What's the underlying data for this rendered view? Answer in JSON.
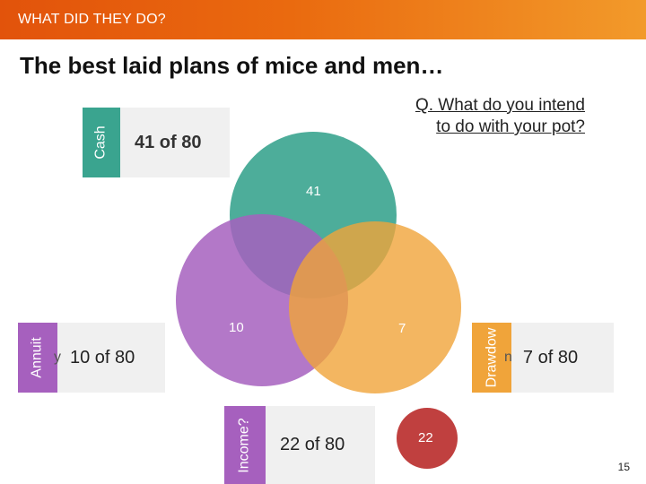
{
  "header": {
    "label": "WHAT DID THEY DO?",
    "color": "#e55a0d"
  },
  "title": "The best laid plans of mice and men…",
  "question": "Q. What do you intend to do with your pot?",
  "categories": {
    "cash": {
      "side_label": "Cash",
      "summary": "41 of 80",
      "color": "#3aa48f"
    },
    "annuity": {
      "side_label": "Annuit",
      "marker": "y",
      "summary": "10 of 80",
      "color": "#a660be"
    },
    "drawdown": {
      "side_label": "Drawdow",
      "marker": "n",
      "summary": "7 of 80",
      "color": "#f0a43a"
    },
    "income": {
      "side_label": "Income?",
      "summary": "22 of 80",
      "color": "#a660be"
    }
  },
  "venn": {
    "cash_count": "41",
    "annuity_count": "10",
    "drawdown_count": "7",
    "income_count": "22",
    "cash_color": "#3aa48f",
    "annuity_color": "#a660be",
    "drawdown_color": "#f0a43a",
    "income_color": "#c0403f"
  },
  "page_number": "15"
}
